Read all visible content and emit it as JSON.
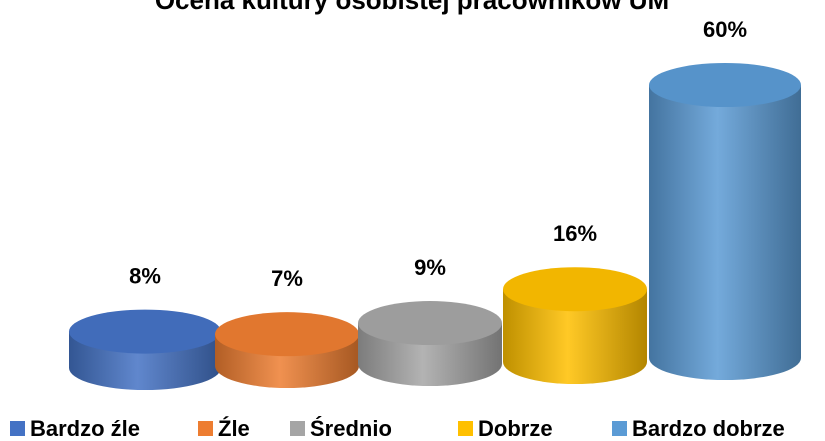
{
  "chart_data": {
    "type": "cylinder",
    "title": "Ocena kultury osobistej pracowników UM",
    "categories": [
      "Bardzo źle",
      "Źle",
      "Średnio",
      "Dobrze",
      "Bardzo dobrze"
    ],
    "values": [
      8,
      7,
      9,
      16,
      60
    ],
    "value_labels": [
      "8%",
      "7%",
      "9%",
      "16%",
      "60%"
    ],
    "colors": [
      "#4472c4",
      "#ed7d31",
      "#a5a5a5",
      "#ffc000",
      "#5b9bd5"
    ],
    "legend": "bottom"
  }
}
